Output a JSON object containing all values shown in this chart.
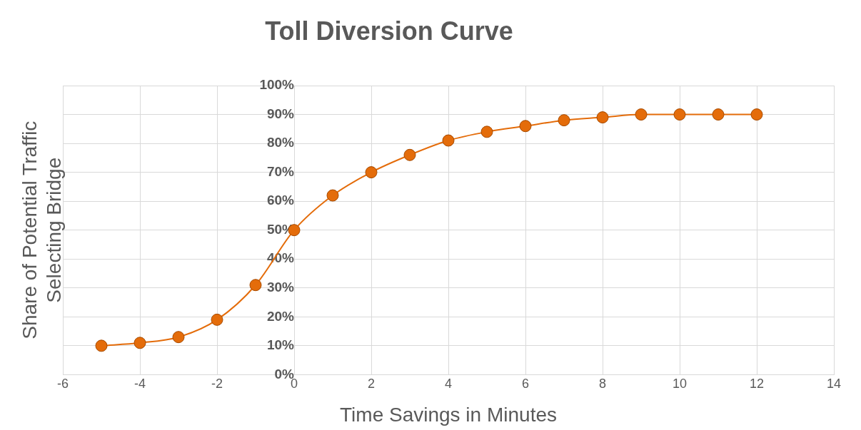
{
  "chart_data": {
    "type": "line",
    "title": "Toll Diversion Curve",
    "xlabel": "Time Savings in Minutes",
    "ylabel": "Share of Potential Traffic Selecting Bridge",
    "x": [
      -5,
      -4,
      -3,
      -2,
      -1,
      0,
      1,
      2,
      3,
      4,
      5,
      6,
      7,
      8,
      9,
      10,
      11,
      12
    ],
    "series": [
      {
        "color": "#e46c0a",
        "values": [
          10,
          11,
          13,
          19,
          31,
          50,
          62,
          70,
          76,
          81,
          84,
          86,
          88,
          89,
          90,
          90,
          90,
          90
        ]
      }
    ],
    "xlim": [
      -6,
      14
    ],
    "xticks": [
      -6,
      -4,
      -2,
      0,
      2,
      4,
      6,
      8,
      10,
      12,
      14
    ],
    "ylim": [
      0,
      100
    ],
    "yticks": [
      {
        "value": 0,
        "label": "0%"
      },
      {
        "value": 10,
        "label": "10%"
      },
      {
        "value": 20,
        "label": "20%"
      },
      {
        "value": 30,
        "label": "30%"
      },
      {
        "value": 40,
        "label": "40%"
      },
      {
        "value": 50,
        "label": "50%"
      },
      {
        "value": 60,
        "label": "60%"
      },
      {
        "value": 70,
        "label": "70%"
      },
      {
        "value": 80,
        "label": "80%"
      },
      {
        "value": 90,
        "label": "90%"
      },
      {
        "value": 100,
        "label": "100%"
      }
    ],
    "grid": true,
    "legend": false,
    "marker": "circle",
    "line_style": "solid"
  }
}
